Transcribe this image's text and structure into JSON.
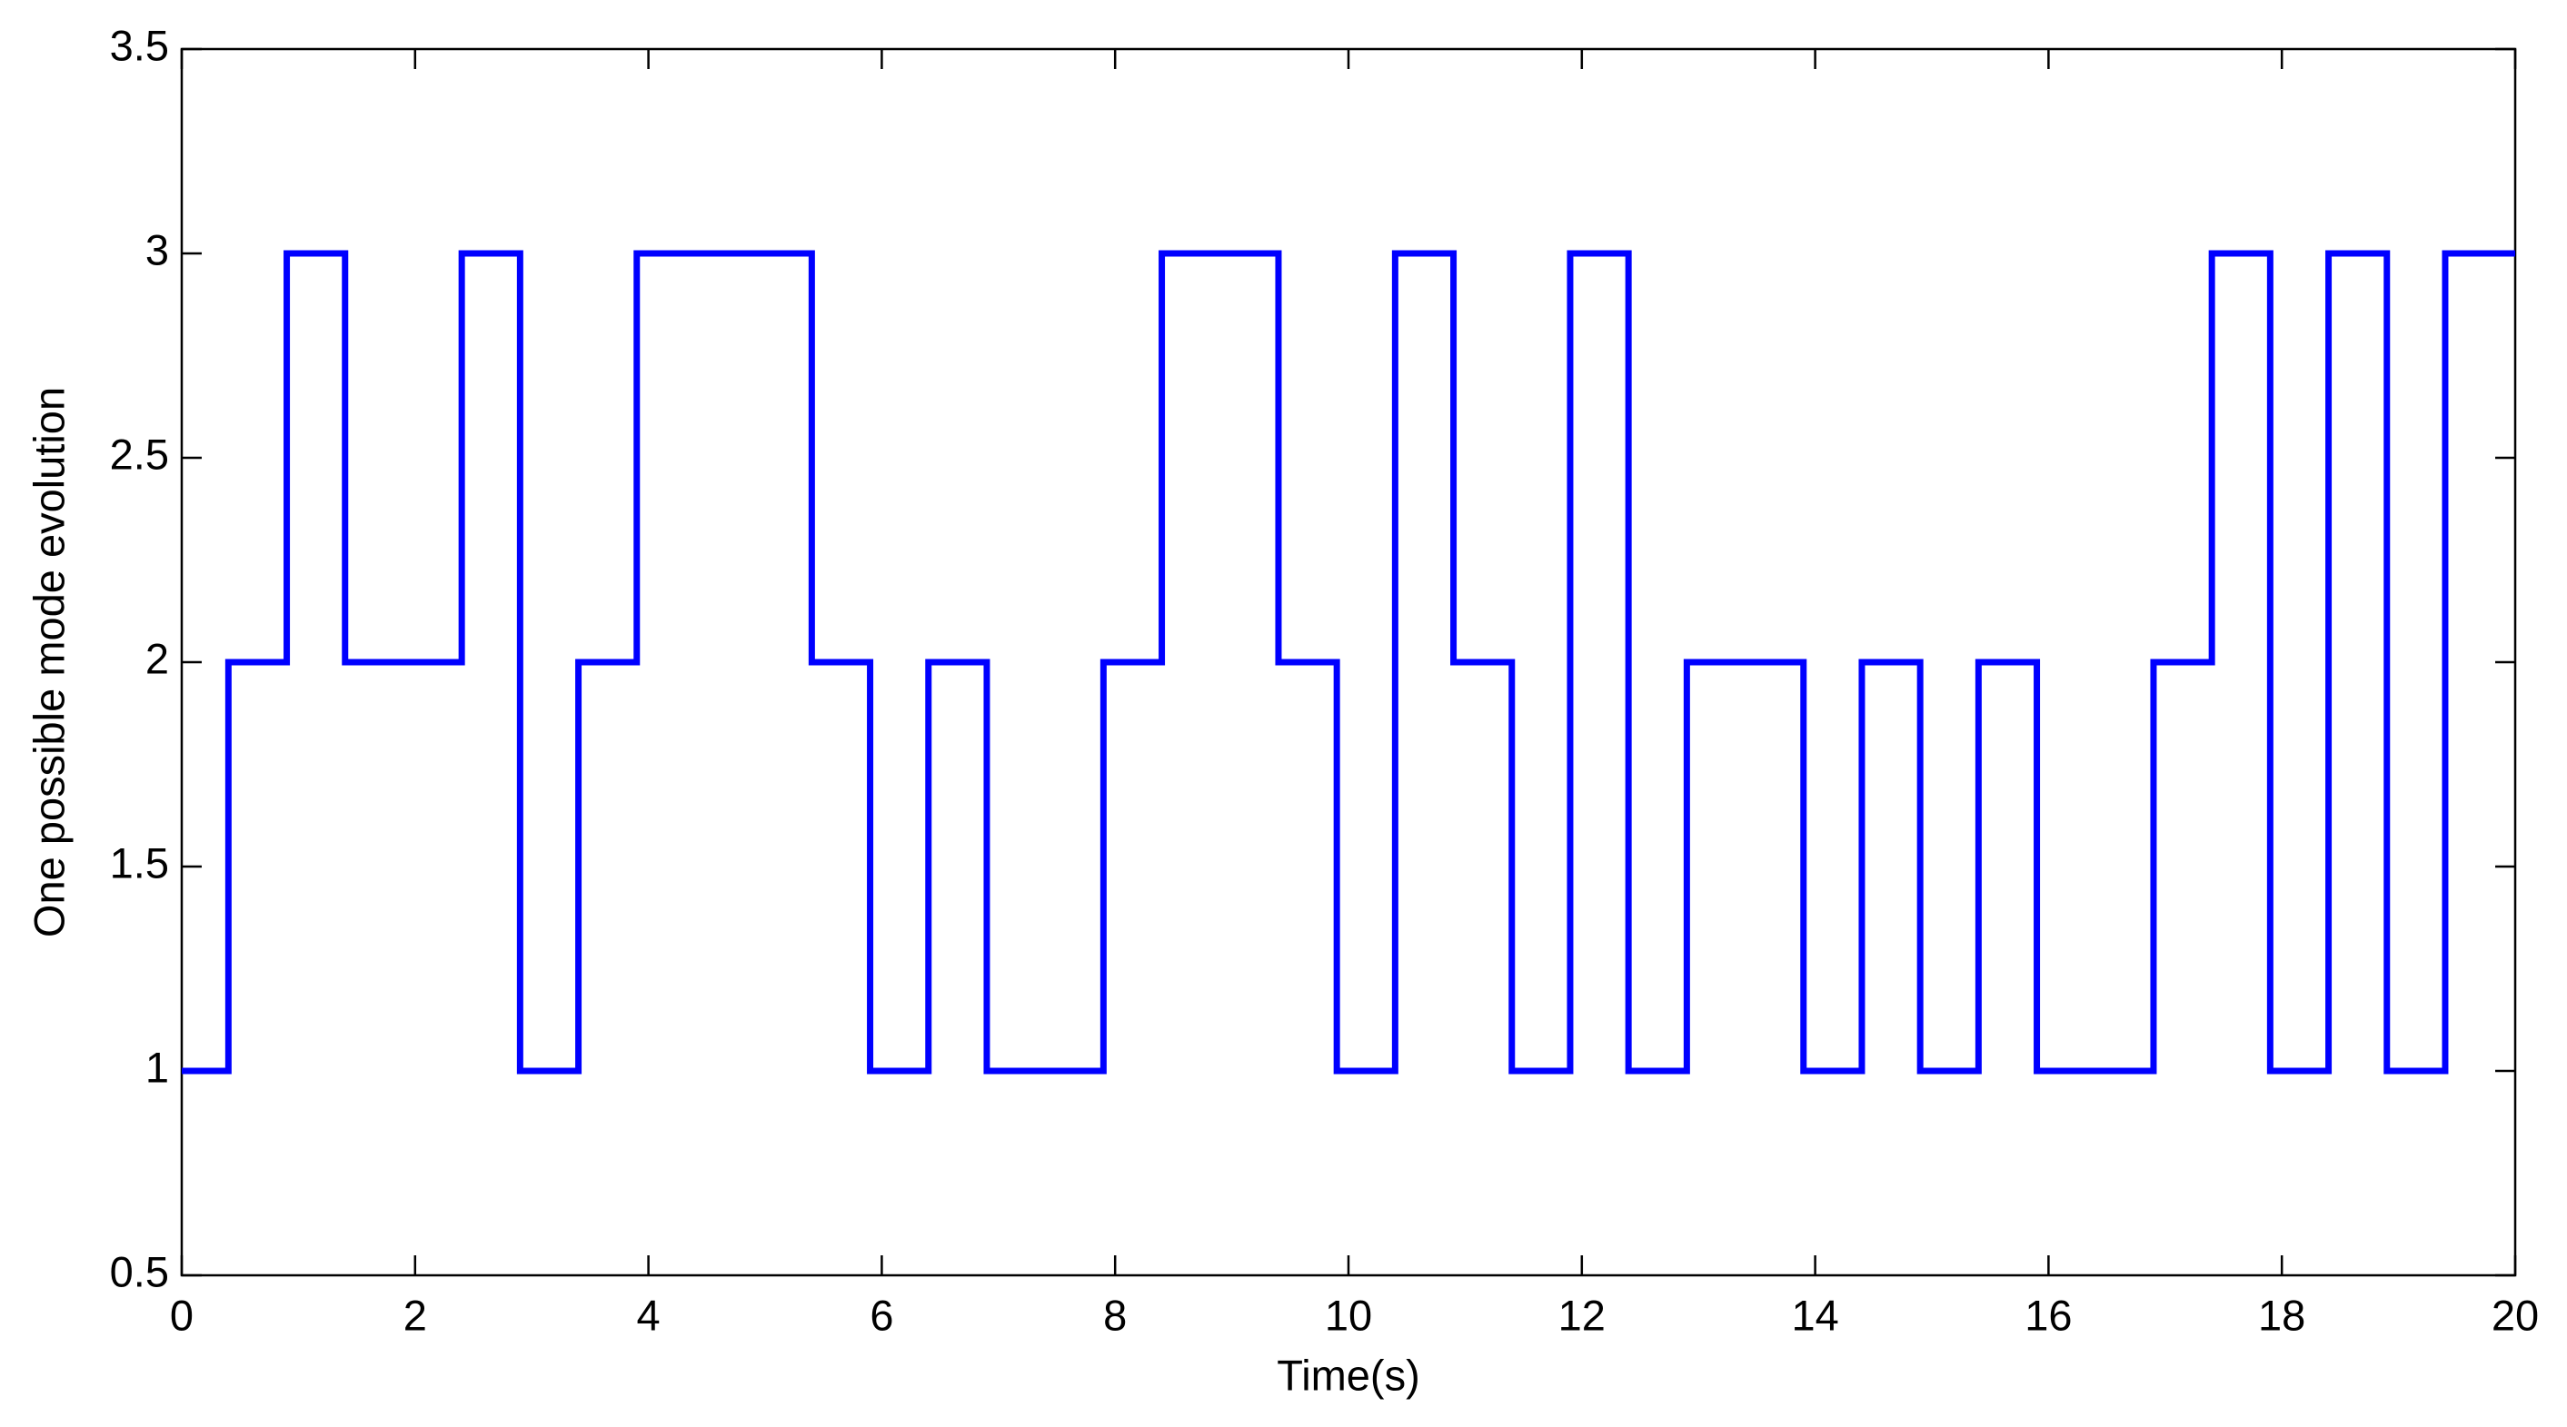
{
  "chart_data": {
    "type": "line",
    "step": "post",
    "xlabel": "Time(s)",
    "ylabel": "One possible mode evolution",
    "x": [
      0,
      0.4,
      0.9,
      1.4,
      2.4,
      2.9,
      3.4,
      3.9,
      5.4,
      5.9,
      6.4,
      6.9,
      7.9,
      8.4,
      9.4,
      9.9,
      10.4,
      10.9,
      11.4,
      11.9,
      12.4,
      12.9,
      13.9,
      14.4,
      14.9,
      15.4,
      15.9,
      16.9,
      17.4,
      17.9,
      18.4,
      18.9,
      19.4,
      20
    ],
    "series": [
      {
        "color": "#0000ff",
        "values": [
          1,
          2,
          3,
          2,
          3,
          1,
          2,
          3,
          2,
          1,
          2,
          1,
          2,
          3,
          2,
          1,
          3,
          2,
          1,
          3,
          1,
          2,
          1,
          2,
          1,
          2,
          1,
          2,
          3,
          1,
          3,
          1,
          3,
          3
        ]
      }
    ],
    "xlim": [
      0,
      20
    ],
    "xticks": [
      0,
      2,
      4,
      6,
      8,
      10,
      12,
      14,
      16,
      18,
      20
    ],
    "ylim": [
      0.5,
      3.5
    ],
    "yticks": [
      0.5,
      1,
      1.5,
      2,
      2.5,
      3,
      3.5
    ],
    "grid": false
  }
}
